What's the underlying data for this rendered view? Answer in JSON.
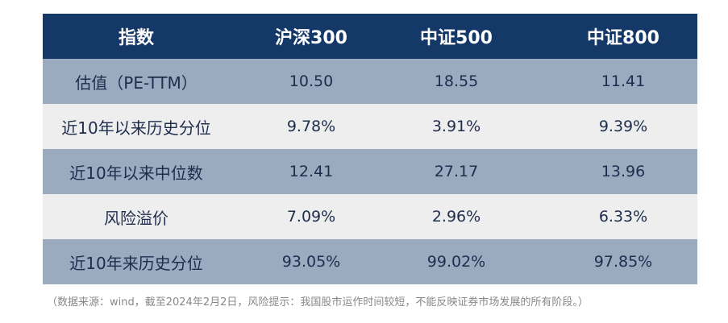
{
  "table": {
    "headers": [
      "指数",
      "沪深300",
      "中证500",
      "中证800"
    ],
    "rows": [
      [
        "估值（PE-TTM）",
        "10.50",
        "18.55",
        "11.41"
      ],
      [
        "近10年以来历史分位",
        "9.78%",
        "3.91%",
        "9.39%"
      ],
      [
        "近10年以来中位数",
        "12.41",
        "27.17",
        "13.96"
      ],
      [
        "风险溢价",
        "7.09%",
        "2.96%",
        "6.33%"
      ],
      [
        "近10年来历史分位",
        "93.05%",
        "99.02%",
        "97.85%"
      ]
    ]
  },
  "note": "（数据来源：wind，截至2024年2月2日，风险提示：我国股市运作时间较短，不能反映证券市场发展的所有阶段。）"
}
